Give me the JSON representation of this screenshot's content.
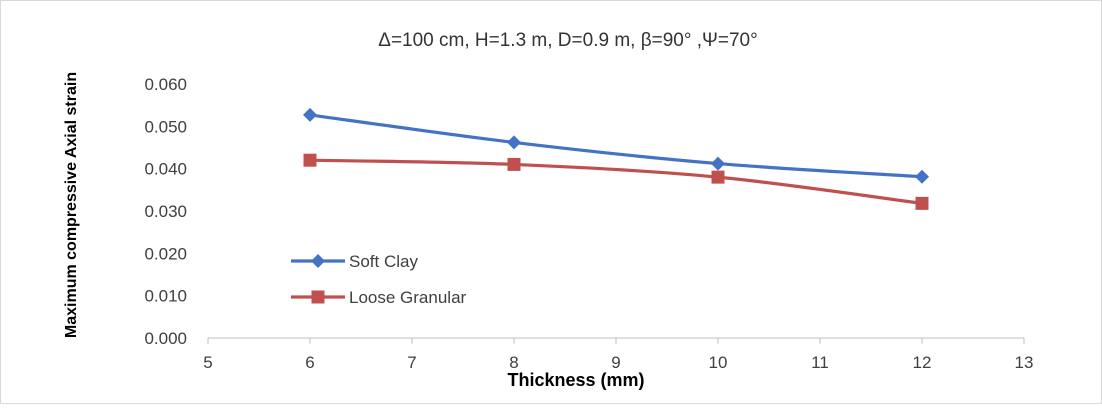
{
  "chart_data": {
    "type": "line",
    "title": "Δ=100 cm, H=1.3 m, D=0.9 m, β=90° ,Ψ=70°",
    "xlabel": "Thickness (mm)",
    "ylabel": "Maximum compressive Axial  strain",
    "xlim": [
      5,
      13
    ],
    "ylim": [
      0.0,
      0.06
    ],
    "x_ticks": [
      "5",
      "6",
      "7",
      "8",
      "9",
      "10",
      "11",
      "12",
      "13"
    ],
    "y_ticks": [
      "0.000",
      "0.010",
      "0.020",
      "0.030",
      "0.040",
      "0.050",
      "0.060"
    ],
    "x": [
      6,
      8,
      10,
      12
    ],
    "series": [
      {
        "name": "Soft Clay",
        "values": [
          0.0527,
          0.0462,
          0.0412,
          0.0381
        ],
        "color": "#4472C4",
        "marker": "diamond"
      },
      {
        "name": "Loose Granular",
        "values": [
          0.042,
          0.041,
          0.038,
          0.0318
        ],
        "color": "#C0504D",
        "marker": "square"
      }
    ],
    "legend_position": "left-inside",
    "grid": false
  }
}
